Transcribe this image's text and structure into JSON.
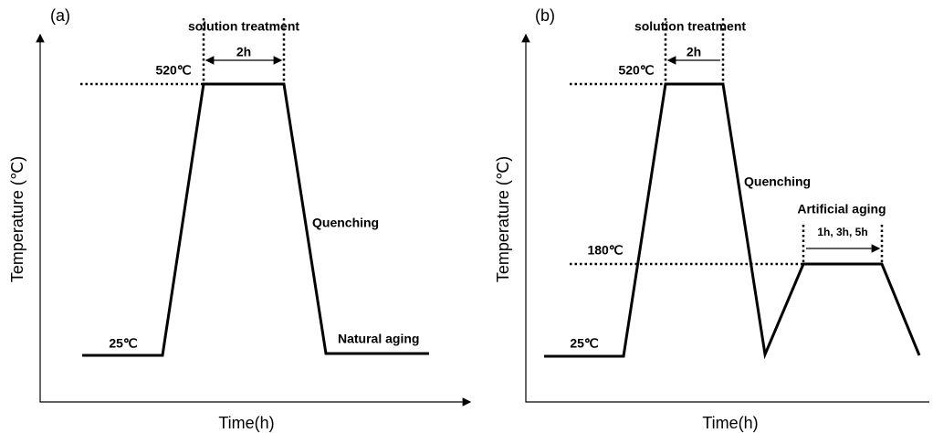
{
  "panels": [
    {
      "label": "(a)",
      "solution": "solution treatment",
      "duration": "2h",
      "high_temp": "520℃",
      "low_temp": "25℃",
      "quench": "Quenching",
      "aging": "Natural aging",
      "y_label": "Temperature (℃)",
      "x_label": "Time(h)"
    },
    {
      "label": "(b)",
      "solution": "solution treatment",
      "duration": "2h",
      "high_temp": "520℃",
      "low_temp": "25℃",
      "quench": "Quenching",
      "aging_temp": "180℃",
      "aging": "Artificial aging",
      "aging_duration": "1h, 3h, 5h",
      "y_label": "Temperature (℃)",
      "x_label": "Time(h)"
    }
  ]
}
